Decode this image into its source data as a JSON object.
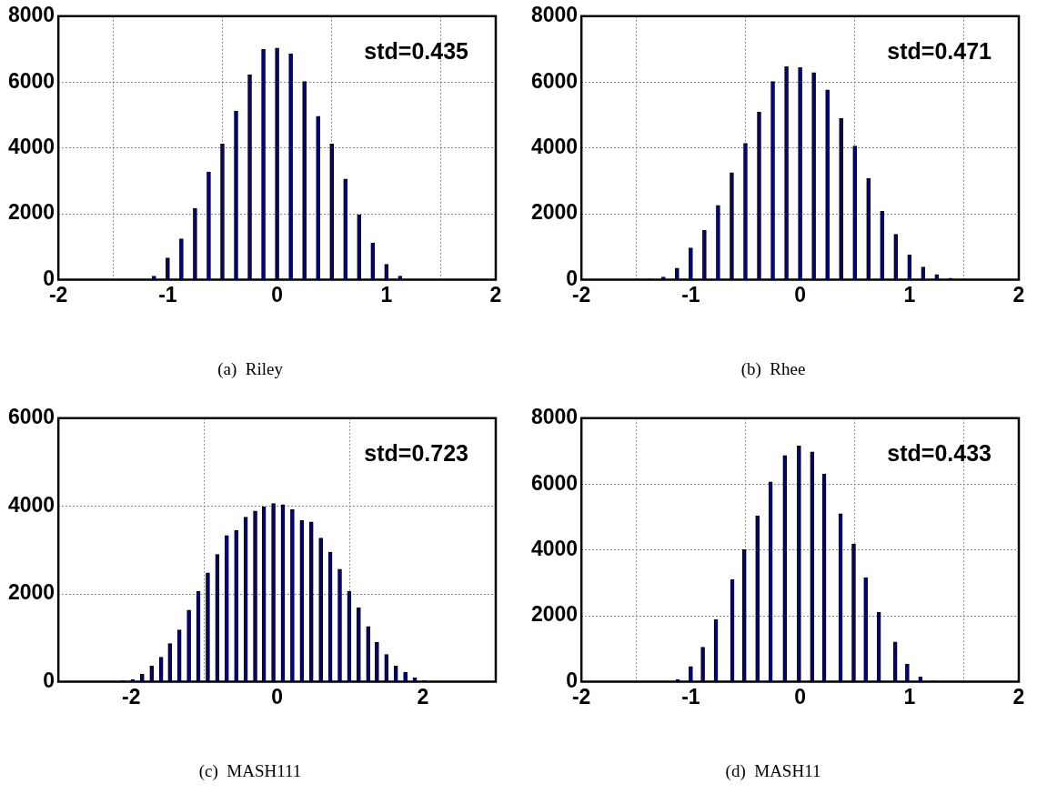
{
  "chart_data": [
    {
      "type": "bar",
      "title": "(a)  Riley",
      "annotations": [
        "std=0.435"
      ],
      "grid": true,
      "color": "#000080",
      "x": [
        -1.125,
        -1,
        -0.875,
        -0.75,
        -0.625,
        -0.5,
        -0.375,
        -0.25,
        -0.125,
        0,
        0.125,
        0.25,
        0.375,
        0.5,
        0.625,
        0.75,
        0.875,
        1,
        1.125
      ],
      "values": [
        110,
        660,
        1240,
        2170,
        3270,
        4120,
        5120,
        6220,
        6990,
        7030,
        6860,
        6020,
        4960,
        4120,
        3060,
        1970,
        1120,
        470,
        110
      ],
      "xlim": [
        -2,
        2
      ],
      "xticks": [
        -2,
        -1,
        0,
        1,
        2
      ],
      "ylim": [
        0,
        8000
      ],
      "yticks": [
        0,
        2000,
        4000,
        6000,
        8000
      ]
    },
    {
      "type": "bar",
      "title": "(b)  Rhee",
      "annotations": [
        "std=0.471"
      ],
      "grid": true,
      "color": "#000080",
      "x": [
        -1.5,
        -1.375,
        -1.25,
        -1.125,
        -1,
        -0.875,
        -0.75,
        -0.625,
        -0.5,
        -0.375,
        -0.25,
        -0.125,
        0,
        0.125,
        0.25,
        0.375,
        0.5,
        0.625,
        0.75,
        0.875,
        1,
        1.125,
        1.25,
        1.375,
        1.5
      ],
      "values": [
        20,
        20,
        80,
        350,
        970,
        1500,
        2260,
        3250,
        4140,
        5090,
        6020,
        6470,
        6440,
        6290,
        5760,
        4900,
        4060,
        3080,
        2080,
        1380,
        760,
        390,
        160,
        50,
        20
      ],
      "xlim": [
        -2,
        2
      ],
      "xticks": [
        -2,
        -1,
        0,
        1,
        2
      ],
      "ylim": [
        0,
        8000
      ],
      "yticks": [
        0,
        2000,
        4000,
        6000,
        8000
      ]
    },
    {
      "type": "bar",
      "title": "(c)  MASH111",
      "annotations": [
        "std=0.723"
      ],
      "grid": true,
      "color": "#000080",
      "x": [
        -2.11,
        -1.98,
        -1.85,
        -1.72,
        -1.59,
        -1.47,
        -1.34,
        -1.21,
        -1.08,
        -0.95,
        -0.82,
        -0.69,
        -0.56,
        -0.43,
        -0.3,
        -0.18,
        -0.05,
        0.08,
        0.21,
        0.34,
        0.47,
        0.6,
        0.73,
        0.86,
        0.99,
        1.12,
        1.25,
        1.37,
        1.5,
        1.63,
        1.76,
        1.89,
        2.02
      ],
      "values": [
        20,
        50,
        170,
        360,
        560,
        870,
        1180,
        1630,
        2060,
        2480,
        2900,
        3330,
        3440,
        3750,
        3890,
        3980,
        4060,
        4030,
        3920,
        3670,
        3640,
        3270,
        2950,
        2560,
        2060,
        1690,
        1260,
        900,
        620,
        360,
        220,
        90,
        30
      ],
      "xlim": [
        -3,
        3
      ],
      "xticks": [
        -2,
        0,
        2
      ],
      "ylim": [
        0,
        6000
      ],
      "yticks": [
        0,
        2000,
        4000,
        6000
      ]
    },
    {
      "type": "bar",
      "title": "(d)  MASH11",
      "annotations": [
        "std=0.433"
      ],
      "grid": true,
      "color": "#000080",
      "x": [
        -1.12,
        -1,
        -0.89,
        -0.77,
        -0.62,
        -0.51,
        -0.39,
        -0.27,
        -0.14,
        -0.01,
        0.11,
        0.22,
        0.37,
        0.49,
        0.6,
        0.72,
        0.87,
        0.98,
        1.1,
        1.22
      ],
      "values": [
        70,
        460,
        1050,
        1890,
        3100,
        4010,
        5030,
        6070,
        6870,
        7160,
        6980,
        6310,
        5100,
        4180,
        3160,
        2110,
        1210,
        530,
        150,
        20
      ],
      "xlim": [
        -2,
        2
      ],
      "xticks": [
        -2,
        -1,
        0,
        1,
        2
      ],
      "ylim": [
        0,
        8000
      ],
      "yticks": [
        0,
        2000,
        4000,
        6000,
        8000
      ]
    }
  ]
}
